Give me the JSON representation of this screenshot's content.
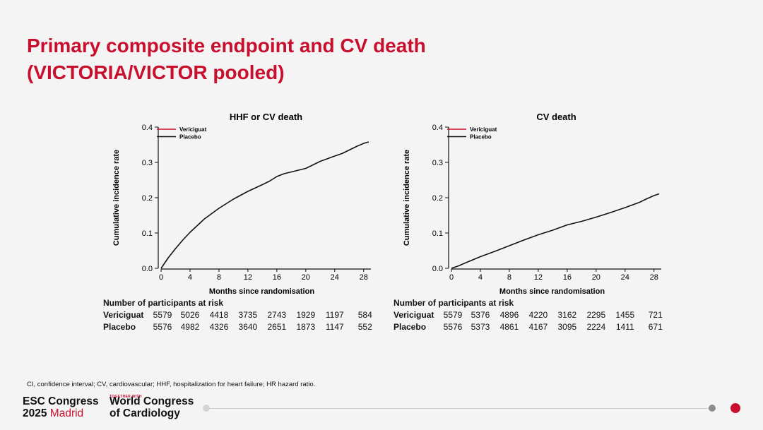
{
  "slide": {
    "title_line1": "Primary composite endpoint and CV death",
    "title_line2": "(VICTORIA/VICTOR pooled)",
    "footnote": "CI, confidence interval; CV, cardiovascular; HHF, hospitalization for heart failure; HR hazard ratio."
  },
  "branding": {
    "esc_line1": "ESC Congress",
    "esc_year": "2025",
    "esc_city": "Madrid",
    "together_with": "TOGETHER WITH",
    "wc_line1": "World Congress",
    "wc_line2": "of Cardiology",
    "accent_color": "#c8102e"
  },
  "chart_data": [
    {
      "type": "line",
      "title": "HHF or CV death",
      "xlabel": "Months since randomisation",
      "ylabel": "Cumulative incidence rate",
      "xlim": [
        0,
        29
      ],
      "ylim": [
        0,
        0.4
      ],
      "xticks": [
        "0",
        "4",
        "8",
        "12",
        "16",
        "20",
        "24",
        "28"
      ],
      "yticks": [
        "0.0",
        "0.1",
        "0.2",
        "0.3",
        "0.4"
      ],
      "legend_position": "top-left",
      "series": [
        {
          "name": "Vericiguat",
          "color": "#c8102e",
          "x": [],
          "y": []
        },
        {
          "name": "Placebo",
          "color": "#111111",
          "x": [
            0,
            1,
            2,
            3,
            4,
            6,
            8,
            10,
            12,
            14,
            15,
            16,
            17,
            18,
            20,
            21,
            22,
            24,
            25,
            26,
            27,
            28,
            28.7
          ],
          "y": [
            0,
            0.03,
            0.056,
            0.08,
            0.102,
            0.14,
            0.17,
            0.196,
            0.218,
            0.237,
            0.247,
            0.26,
            0.268,
            0.273,
            0.283,
            0.293,
            0.303,
            0.318,
            0.325,
            0.335,
            0.345,
            0.354,
            0.358
          ]
        }
      ],
      "risk_table": {
        "header": "Number of participants at risk",
        "rows": [
          {
            "label": "Vericiguat",
            "values": [
              "5579",
              "5026",
              "4418",
              "3735",
              "2743",
              "1929",
              "1197",
              "584"
            ]
          },
          {
            "label": "Placebo",
            "values": [
              "5576",
              "4982",
              "4326",
              "3640",
              "2651",
              "1873",
              "1147",
              "552"
            ]
          }
        ]
      }
    },
    {
      "type": "line",
      "title": "CV death",
      "xlabel": "Months since randomisation",
      "ylabel": "Cumulative incidence rate",
      "xlim": [
        0,
        29
      ],
      "ylim": [
        0,
        0.4
      ],
      "xticks": [
        "0",
        "4",
        "8",
        "12",
        "16",
        "20",
        "24",
        "28"
      ],
      "yticks": [
        "0.0",
        "0.1",
        "0.2",
        "0.3",
        "0.4"
      ],
      "legend_position": "top-left",
      "series": [
        {
          "name": "Vericiguat",
          "color": "#c8102e",
          "x": [],
          "y": []
        },
        {
          "name": "Placebo",
          "color": "#111111",
          "x": [
            0,
            1,
            2,
            4,
            6,
            8,
            10,
            12,
            14,
            16,
            18,
            20,
            22,
            24,
            26,
            27,
            28,
            28.7
          ],
          "y": [
            0,
            0.007,
            0.016,
            0.033,
            0.048,
            0.064,
            0.08,
            0.095,
            0.108,
            0.123,
            0.133,
            0.145,
            0.158,
            0.172,
            0.187,
            0.197,
            0.206,
            0.211
          ]
        }
      ],
      "risk_table": {
        "header": "Number of participants at risk",
        "rows": [
          {
            "label": "Vericiguat",
            "values": [
              "5579",
              "5376",
              "4896",
              "4220",
              "3162",
              "2295",
              "1455",
              "721"
            ]
          },
          {
            "label": "Placebo",
            "values": [
              "5576",
              "5373",
              "4861",
              "4167",
              "3095",
              "2224",
              "1411",
              "671"
            ]
          }
        ]
      }
    }
  ]
}
